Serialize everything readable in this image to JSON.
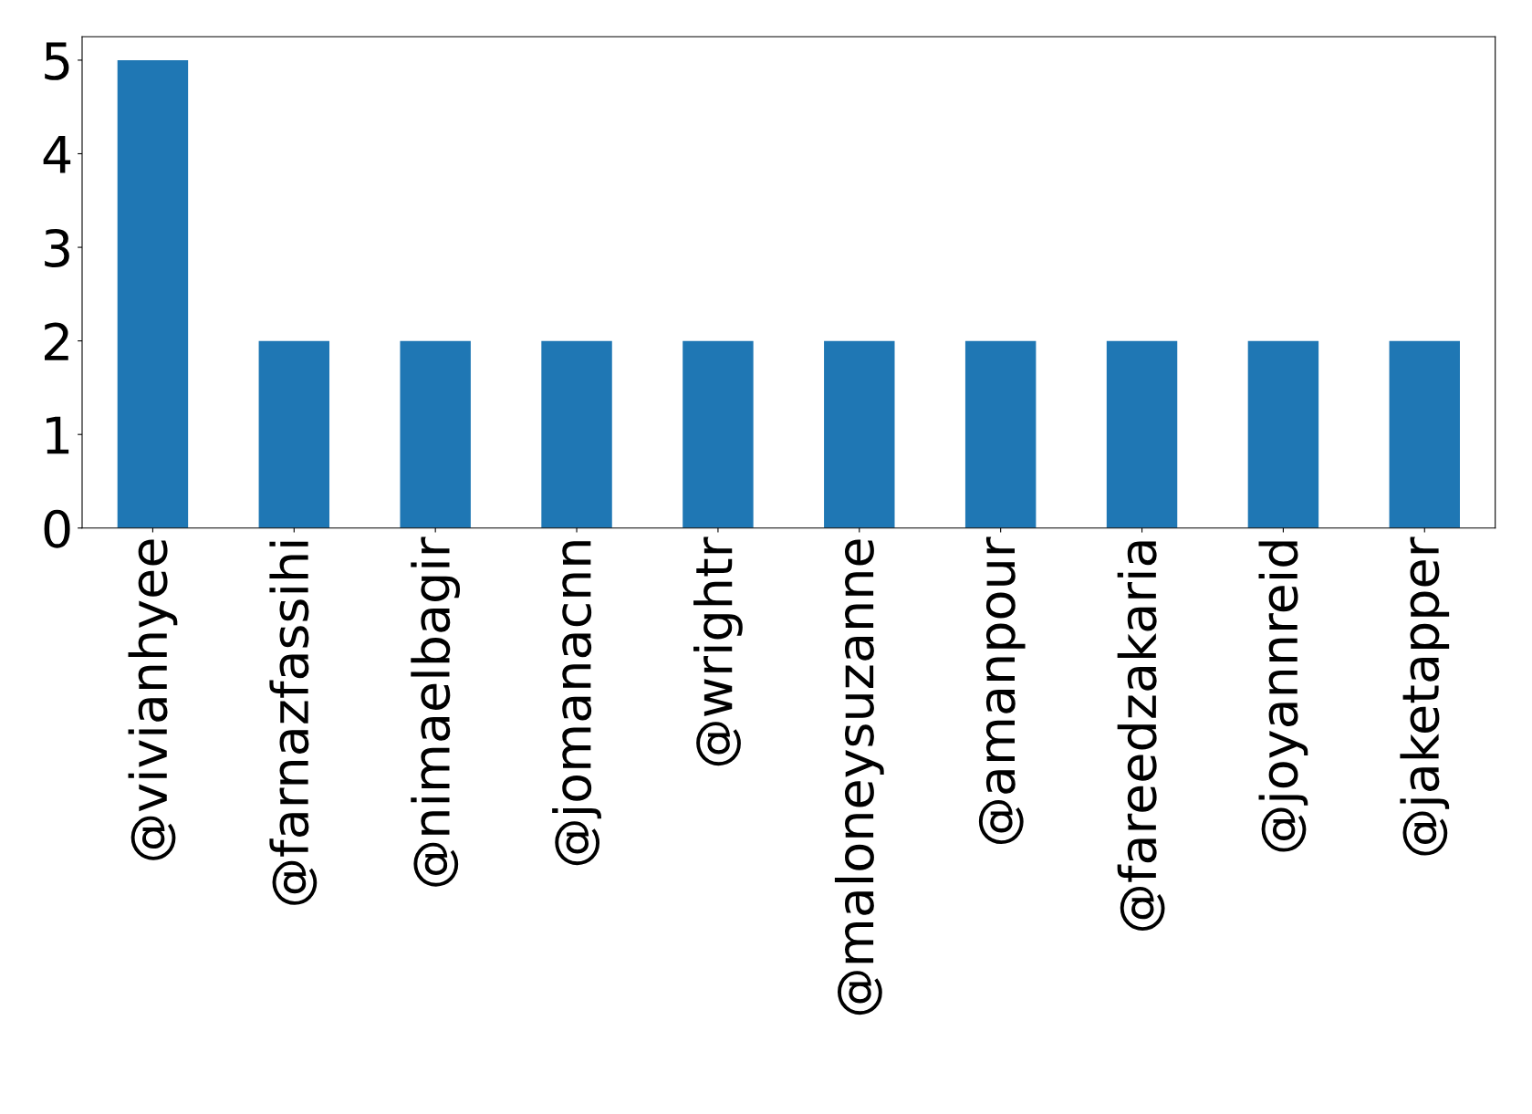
{
  "chart_data": {
    "type": "bar",
    "categories": [
      "@vivianhyee",
      "@farnazfassihi",
      "@nimaelbagir",
      "@jomanacnn",
      "@wrightr",
      "@maloneysuzanne",
      "@amanpour",
      "@fareedzakaria",
      "@joyannreid",
      "@jaketapper"
    ],
    "values": [
      5,
      2,
      2,
      2,
      2,
      2,
      2,
      2,
      2,
      2
    ],
    "color": "#1f77b4",
    "ylim": [
      0,
      5.25
    ],
    "yticks": [
      0,
      1,
      2,
      3,
      4,
      5
    ],
    "grid": false,
    "legend": false
  }
}
